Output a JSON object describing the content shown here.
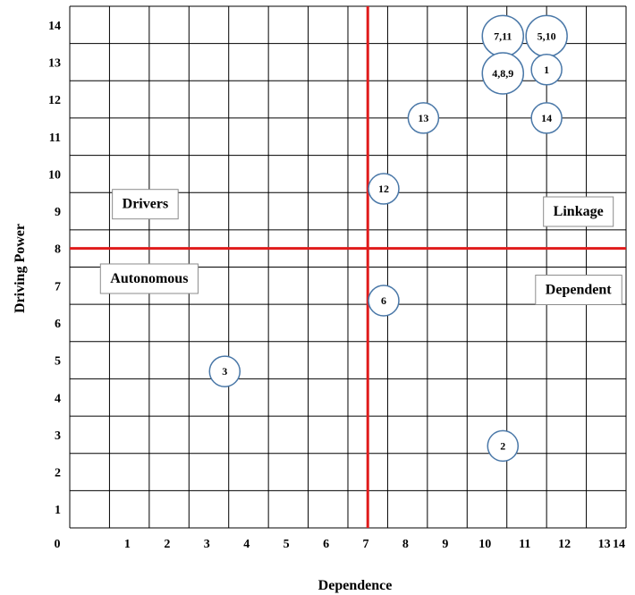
{
  "chart_data": {
    "type": "scatter",
    "title": "",
    "xlabel": "Dependence",
    "ylabel": "Driving Power",
    "xlim": [
      0,
      14
    ],
    "ylim": [
      0,
      14
    ],
    "x_ticks": [
      "0",
      "1",
      "2",
      "3",
      "4",
      "5",
      "6",
      "7",
      "8",
      "9",
      "10",
      "11",
      "12",
      "13",
      "14"
    ],
    "y_ticks": [
      "1",
      "2",
      "3",
      "4",
      "5",
      "6",
      "7",
      "8",
      "9",
      "10",
      "11",
      "12",
      "13",
      "14"
    ],
    "grid": true,
    "divider": {
      "x": 7.5,
      "y": 7.5
    },
    "quadrants": [
      {
        "label": "Drivers",
        "x": 1.9,
        "y": 8.7
      },
      {
        "label": "Linkage",
        "x": 12.8,
        "y": 8.5
      },
      {
        "label": "Autonomous",
        "x": 2.0,
        "y": 6.7
      },
      {
        "label": "Dependent",
        "x": 12.8,
        "y": 6.4
      }
    ],
    "points": [
      {
        "label": "7,11",
        "x": 10.9,
        "y": 13.2
      },
      {
        "label": "5,10",
        "x": 12.0,
        "y": 13.2
      },
      {
        "label": "4,8,9",
        "x": 10.9,
        "y": 12.2
      },
      {
        "label": "1",
        "x": 12.0,
        "y": 12.3
      },
      {
        "label": "13",
        "x": 8.9,
        "y": 11.0
      },
      {
        "label": "14",
        "x": 12.0,
        "y": 11.0
      },
      {
        "label": "12",
        "x": 7.9,
        "y": 9.1
      },
      {
        "label": "6",
        "x": 7.9,
        "y": 6.1
      },
      {
        "label": "3",
        "x": 3.9,
        "y": 4.2
      },
      {
        "label": "2",
        "x": 10.9,
        "y": 2.2
      }
    ]
  },
  "colors": {
    "grid": "#000000",
    "divider": "#e01b1b",
    "bubble_stroke": "#4a78a8",
    "bubble_fill": "#ffffff",
    "quadrant_box_stroke": "#8c8c8c"
  }
}
